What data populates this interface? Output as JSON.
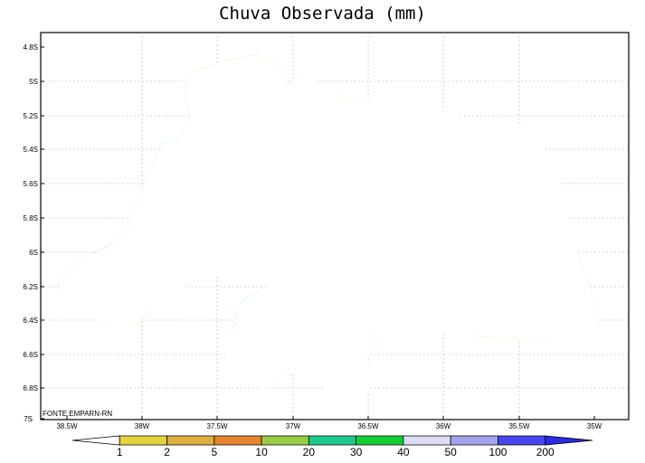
{
  "title": "Chuva Observada (mm)",
  "source": "FONTE:EMPARN-RN",
  "y_ticks": [
    "4.8S",
    "5S",
    "5.2S",
    "5.4S",
    "5.6S",
    "5.8S",
    "6S",
    "6.2S",
    "6.4S",
    "6.6S",
    "6.8S",
    "7S"
  ],
  "x_ticks": [
    "38.5W",
    "38W",
    "37.5W",
    "37W",
    "36.5W",
    "36W",
    "35.5W",
    "35W"
  ],
  "colorbar": {
    "labels": [
      "1",
      "2",
      "5",
      "10",
      "20",
      "30",
      "40",
      "50",
      "100",
      "200"
    ],
    "colors": [
      "#ffffff",
      "#e3d43c",
      "#dfae41",
      "#e6852f",
      "#96cd45",
      "#1dc98a",
      "#14cf33",
      "#dcdcf5",
      "#a4a4ee",
      "#4646ee",
      "#2a2ae6"
    ]
  },
  "legend_colors": {
    "yellow": "#e3d43c",
    "ochre": "#dfae41",
    "orange": "#e6852f",
    "lightgreen": "#96cd45",
    "teal": "#1dc98a",
    "green": "#14cf33",
    "lavender": "#dcdcf5",
    "periwinkle": "#a4a4ee",
    "blue": "#4646ee"
  }
}
